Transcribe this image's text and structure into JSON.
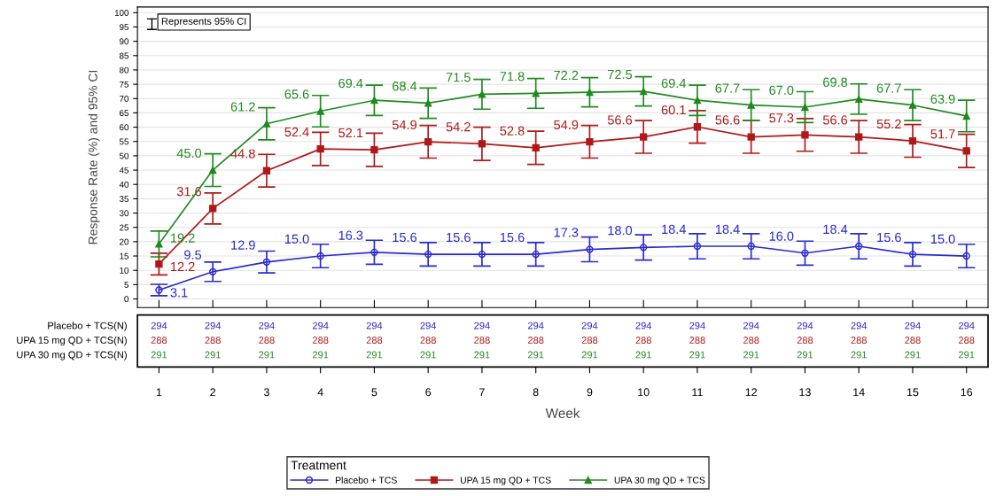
{
  "chart_data": {
    "type": "line",
    "xlabel": "Week",
    "ylabel": "Response Rate (%) and 95% CI",
    "legend_title": "Treatment",
    "x": [
      1,
      2,
      3,
      4,
      5,
      6,
      7,
      8,
      9,
      10,
      11,
      12,
      13,
      14,
      15,
      16
    ],
    "xlim": [
      0.6,
      16.4
    ],
    "xticks": [
      1,
      2,
      3,
      4,
      5,
      6,
      7,
      8,
      9,
      10,
      11,
      12,
      13,
      14,
      15,
      16
    ],
    "ylim": [
      -3,
      102
    ],
    "yticks": [
      0,
      5,
      10,
      15,
      20,
      25,
      30,
      35,
      40,
      45,
      50,
      55,
      60,
      65,
      70,
      75,
      80,
      85,
      90,
      95,
      100
    ],
    "grid": "y",
    "legend": "bottom",
    "line_style": "solid",
    "series": [
      {
        "name": "Placebo + TCS",
        "color": "#2a2ad0",
        "marker": "circle",
        "values": [
          3.1,
          9.5,
          12.9,
          15.0,
          16.3,
          15.6,
          15.6,
          15.6,
          17.3,
          18.0,
          18.4,
          18.4,
          16.0,
          18.4,
          15.6,
          15.0
        ],
        "value_labels": [
          "3.1",
          "9.5",
          "12.9",
          "15.0",
          "16.3",
          "15.6",
          "15.6",
          "15.6",
          "17.3",
          "18.0",
          "18.4",
          "18.4",
          "16.0",
          "18.4",
          "15.6",
          "15.0"
        ],
        "errors": [
          2.0,
          3.4,
          3.8,
          4.1,
          4.2,
          4.1,
          4.1,
          4.1,
          4.3,
          4.4,
          4.4,
          4.4,
          4.2,
          4.4,
          4.1,
          4.1
        ]
      },
      {
        "name": "UPA 15 mg QD + TCS",
        "color": "#b01818",
        "marker": "square",
        "values": [
          12.2,
          31.6,
          44.8,
          52.4,
          52.1,
          54.9,
          54.2,
          52.8,
          54.9,
          56.6,
          60.1,
          56.6,
          57.3,
          56.6,
          55.2,
          51.7
        ],
        "value_labels": [
          "12.2",
          "31.6",
          "44.8",
          "52.4",
          "52.1",
          "54.9",
          "54.2",
          "52.8",
          "54.9",
          "56.6",
          "60.1",
          "56.6",
          "57.3",
          "56.6",
          "55.2",
          "51.7"
        ],
        "errors": [
          3.8,
          5.4,
          5.7,
          5.8,
          5.8,
          5.7,
          5.8,
          5.8,
          5.7,
          5.7,
          5.7,
          5.7,
          5.7,
          5.7,
          5.7,
          5.8
        ]
      },
      {
        "name": "UPA 30 mg QD + TCS",
        "color": "#1f8a1f",
        "marker": "triangle",
        "values": [
          19.2,
          45.0,
          61.2,
          65.6,
          69.4,
          68.4,
          71.5,
          71.8,
          72.2,
          72.5,
          69.4,
          67.7,
          67.0,
          69.8,
          67.7,
          63.9
        ],
        "value_labels": [
          "19.2",
          "45.0",
          "61.2",
          "65.6",
          "69.4",
          "68.4",
          "71.5",
          "71.8",
          "72.2",
          "72.5",
          "69.4",
          "67.7",
          "67.0",
          "69.8",
          "67.7",
          "63.9"
        ],
        "errors": [
          4.5,
          5.7,
          5.6,
          5.5,
          5.3,
          5.3,
          5.2,
          5.2,
          5.1,
          5.1,
          5.3,
          5.4,
          5.4,
          5.3,
          5.4,
          5.5
        ]
      }
    ],
    "annotations": [
      "Represents 95% CI",
      "Placebo + TCS(N)",
      "294",
      "294",
      "294",
      "294",
      "294",
      "294",
      "294",
      "294",
      "294",
      "294",
      "294",
      "294",
      "294",
      "294",
      "294",
      "294",
      "UPA 15 mg QD + TCS(N)",
      "288",
      "288",
      "288",
      "288",
      "288",
      "288",
      "288",
      "288",
      "288",
      "288",
      "288",
      "288",
      "288",
      "288",
      "288",
      "288",
      "UPA 30 mg QD + TCS(N)",
      "291",
      "291",
      "291",
      "291",
      "291",
      "291",
      "291",
      "291",
      "291",
      "291",
      "291",
      "291",
      "291",
      "291",
      "291",
      "291"
    ]
  }
}
